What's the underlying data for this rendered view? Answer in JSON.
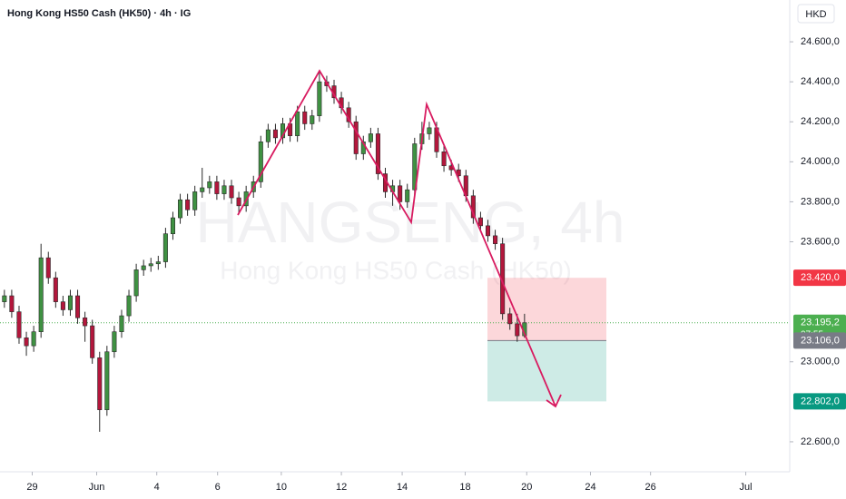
{
  "chart_data": {
    "type": "candlestick",
    "title": "Hong Kong HS50 Cash (HK50) · 4h · IG",
    "currency": "HKD",
    "watermark": [
      "HANGSENG, 4h",
      "Hong Kong HS50 Cash (HK50)"
    ],
    "up_color": "#3f9142",
    "down_color": "#b3173c",
    "wick_color": "#2a2a2a",
    "open": [
      23300,
      23330,
      23250,
      23120,
      23080,
      23150,
      23520,
      23420,
      23300,
      23260,
      23330,
      23220,
      23180,
      23020,
      22760,
      23050,
      23150,
      23230,
      23330,
      23460,
      23480,
      23490,
      23500,
      23640,
      23720,
      23810,
      23760,
      23850,
      23870,
      23900,
      23840,
      23880,
      23820,
      23780,
      23850,
      23900,
      24100,
      24160,
      24120,
      24190,
      24130,
      24250,
      24190,
      24230,
      24400,
      24380,
      24320,
      24270,
      24200,
      24040,
      24100,
      24140,
      23940,
      23850,
      23880,
      23800,
      23860,
      24090,
      24140,
      24170,
      24050,
      23980,
      23960,
      23930,
      23830,
      23720,
      23680,
      23630,
      23590,
      23240,
      23190,
      23130
    ],
    "high": [
      23360,
      23360,
      23280,
      23150,
      23180,
      23590,
      23550,
      23450,
      23330,
      23360,
      23360,
      23250,
      23210,
      23050,
      23080,
      23180,
      23260,
      23360,
      23490,
      23510,
      23520,
      23530,
      23670,
      23750,
      23840,
      23840,
      23880,
      23970,
      23930,
      23930,
      23910,
      23910,
      23850,
      23880,
      23930,
      24130,
      24190,
      24190,
      24220,
      24220,
      24280,
      24280,
      24260,
      24450,
      24430,
      24410,
      24350,
      24300,
      24230,
      24130,
      24170,
      24170,
      23970,
      23910,
      23910,
      23890,
      24120,
      24200,
      24200,
      24200,
      24080,
      24010,
      23990,
      23960,
      23860,
      23750,
      23710,
      23660,
      23620,
      23270,
      23240,
      23240
    ],
    "low": [
      23270,
      23220,
      23090,
      23030,
      23050,
      23120,
      23390,
      23270,
      23230,
      23230,
      23190,
      23100,
      22990,
      22650,
      22730,
      23020,
      23120,
      23200,
      23300,
      23430,
      23450,
      23460,
      23470,
      23610,
      23690,
      23730,
      23730,
      23820,
      23840,
      23810,
      23810,
      23790,
      23740,
      23750,
      23820,
      23870,
      24070,
      24090,
      24090,
      24100,
      24100,
      24160,
      24160,
      24200,
      24350,
      24290,
      24240,
      24170,
      24010,
      24010,
      24070,
      23910,
      23820,
      23780,
      23760,
      23770,
      23830,
      24060,
      24110,
      24020,
      23950,
      23930,
      23900,
      23800,
      23690,
      23650,
      23600,
      23560,
      23210,
      23160,
      23100,
      23120
    ],
    "close": [
      23330,
      23250,
      23120,
      23080,
      23150,
      23520,
      23420,
      23300,
      23260,
      23330,
      23220,
      23180,
      23020,
      22760,
      23050,
      23150,
      23230,
      23330,
      23460,
      23480,
      23490,
      23500,
      23640,
      23720,
      23810,
      23760,
      23850,
      23870,
      23900,
      23840,
      23880,
      23820,
      23780,
      23850,
      23900,
      24100,
      24160,
      24120,
      24190,
      24130,
      24250,
      24190,
      24230,
      24400,
      24380,
      24320,
      24270,
      24200,
      24040,
      24100,
      24140,
      23940,
      23850,
      23880,
      23800,
      23860,
      24090,
      24140,
      24170,
      24050,
      23980,
      23960,
      23930,
      23830,
      23720,
      23680,
      23630,
      23590,
      23240,
      23190,
      23130,
      23195
    ],
    "xlim": [
      -0.6,
      107.2
    ],
    "xticks": [
      {
        "value": 3.8,
        "label": "29"
      },
      {
        "value": 12.6,
        "label": "Jun"
      },
      {
        "value": 20.8,
        "label": "4"
      },
      {
        "value": 29.1,
        "label": "6"
      },
      {
        "value": 37.8,
        "label": "10"
      },
      {
        "value": 46,
        "label": "12"
      },
      {
        "value": 54.3,
        "label": "14"
      },
      {
        "value": 62.9,
        "label": "18"
      },
      {
        "value": 71.3,
        "label": "20"
      },
      {
        "value": 80,
        "label": "24"
      },
      {
        "value": 88.2,
        "label": "26"
      },
      {
        "value": 101.2,
        "label": "Jul"
      }
    ],
    "ylim": [
      22450,
      24809
    ],
    "yticks": [
      {
        "value": 24600,
        "label": "24.600,0"
      },
      {
        "value": 24400,
        "label": "24.400,0"
      },
      {
        "value": 24200,
        "label": "24.200,0"
      },
      {
        "value": 24000,
        "label": "24.000,0"
      },
      {
        "value": 23800,
        "label": "23.800,0"
      },
      {
        "value": 23600,
        "label": "23.600,0"
      },
      {
        "value": 23000,
        "label": "23.000,0"
      },
      {
        "value": 22600,
        "label": "22.600,0"
      }
    ],
    "position": {
      "stop": {
        "value": 23420,
        "label": "23.420,0",
        "color": "#f23645"
      },
      "entry": {
        "value": 23106,
        "label": "23.106,0",
        "color": "#787b86"
      },
      "target": {
        "value": 22802,
        "label": "22.802,0",
        "color": "#089981"
      }
    },
    "last_price": {
      "value": 23195.2,
      "label": "23.195,2",
      "countdown": "07:55",
      "color": "#4caf50"
    }
  }
}
